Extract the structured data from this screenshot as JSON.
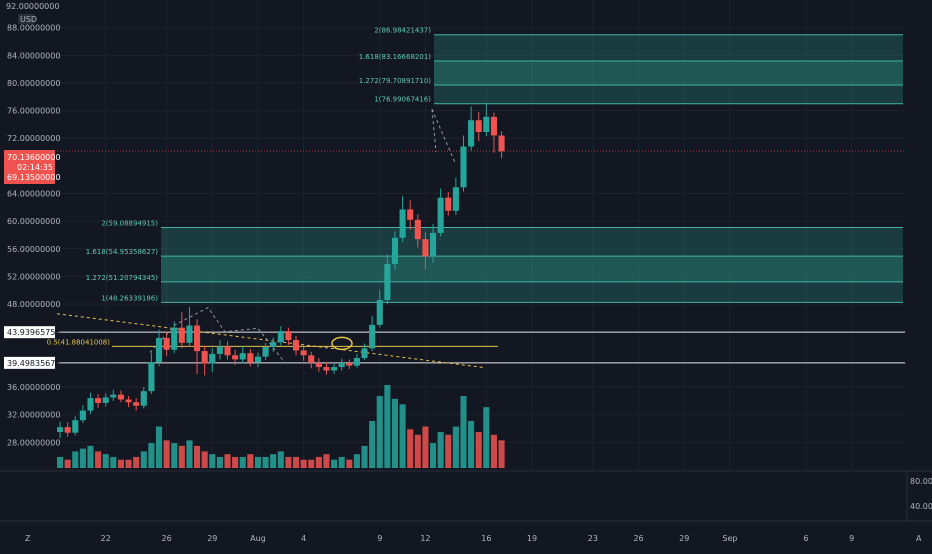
{
  "colors": {
    "background": "#131722",
    "grid": "#1e222d",
    "bull": "#26a69a",
    "bear": "#ef5350",
    "zone_fill": "#2a8c80",
    "zone_line": "#43b5a3",
    "level_line": "#e6e6e6",
    "trend_line": "#e3c24a",
    "current_price_bg": "#ef5350"
  },
  "header": {
    "top_price": "92.00000000",
    "currency": "USD"
  },
  "current_price": {
    "value": "70.13600000",
    "countdown": "02:14:35",
    "low": "69.13500000"
  },
  "levels": [
    {
      "label": "43.93965758",
      "value": 43.94
    },
    {
      "label": "39.49835673",
      "value": 39.5
    }
  ],
  "annotation": {
    "label": "0.5(41.88041008)",
    "value": 41.88
  },
  "fib_upper": [
    {
      "label": "2(86.98421437)",
      "value": 86.98
    },
    {
      "label": "1.618(83.16668201)",
      "value": 83.17
    },
    {
      "label": "1.272(79.70891710)",
      "value": 79.71
    },
    {
      "label": "1(76.99067416)",
      "value": 76.99
    }
  ],
  "fib_lower": [
    {
      "label": "2(59.08894915)",
      "value": 59.09
    },
    {
      "label": "1.618(54.95358627)",
      "value": 54.95
    },
    {
      "label": "1.272(51.20794345)",
      "value": 51.21
    },
    {
      "label": "1(48.26339186)",
      "value": 48.26
    }
  ],
  "volume_axis_labels": [
    "80.00",
    "40.00"
  ],
  "bottom_buttons": {
    "left": "Z",
    "right": "A"
  },
  "chart_data": {
    "type": "candlestick",
    "y_ticks": [
      "88.00000000",
      "84.00000000",
      "80.00000000",
      "76.00000000",
      "72.00000000",
      "64.00000000",
      "60.00000000",
      "56.00000000",
      "52.00000000",
      "48.00000000",
      "36.00000000",
      "32.00000000",
      "28.00000000"
    ],
    "y_tick_values": [
      88,
      84,
      80,
      76,
      72,
      64,
      60,
      56,
      52,
      48,
      36,
      32,
      28
    ],
    "ylim": [
      24,
      92
    ],
    "x_ticks": [
      "22",
      "26",
      "29",
      "Aug",
      "4",
      "9",
      "12",
      "16",
      "19",
      "23",
      "26",
      "29",
      "Sep",
      "6",
      "9"
    ],
    "x_tick_days": [
      22,
      26,
      29,
      32,
      35,
      40,
      43,
      47,
      50,
      54,
      57,
      60,
      63,
      68,
      71
    ],
    "xlim": [
      18.8,
      74.5
    ],
    "candles": [
      {
        "d": 19.0,
        "o": 29.5,
        "c": 30.2,
        "h": 31.0,
        "l": 28.6
      },
      {
        "d": 19.5,
        "o": 30.2,
        "c": 29.4,
        "h": 30.9,
        "l": 28.8
      },
      {
        "d": 20.0,
        "o": 29.4,
        "c": 31.2,
        "h": 31.8,
        "l": 29.0
      },
      {
        "d": 20.5,
        "o": 31.2,
        "c": 32.6,
        "h": 33.4,
        "l": 30.8
      },
      {
        "d": 21.0,
        "o": 32.6,
        "c": 34.4,
        "h": 35.2,
        "l": 32.1
      },
      {
        "d": 21.5,
        "o": 34.4,
        "c": 33.7,
        "h": 35.0,
        "l": 33.0
      },
      {
        "d": 22.0,
        "o": 33.7,
        "c": 34.5,
        "h": 35.1,
        "l": 33.2
      },
      {
        "d": 22.5,
        "o": 34.5,
        "c": 34.9,
        "h": 35.6,
        "l": 34.0
      },
      {
        "d": 23.0,
        "o": 34.9,
        "c": 34.2,
        "h": 35.5,
        "l": 33.8
      },
      {
        "d": 23.5,
        "o": 34.2,
        "c": 33.8,
        "h": 34.7,
        "l": 33.1
      },
      {
        "d": 24.0,
        "o": 33.8,
        "c": 33.3,
        "h": 34.4,
        "l": 32.6
      },
      {
        "d": 24.5,
        "o": 33.3,
        "c": 35.4,
        "h": 36.0,
        "l": 32.9
      },
      {
        "d": 25.0,
        "o": 35.4,
        "c": 39.6,
        "h": 41.0,
        "l": 35.0
      },
      {
        "d": 25.5,
        "o": 39.6,
        "c": 43.1,
        "h": 44.3,
        "l": 39.0
      },
      {
        "d": 26.0,
        "o": 43.1,
        "c": 41.4,
        "h": 44.0,
        "l": 40.5
      },
      {
        "d": 26.5,
        "o": 41.4,
        "c": 44.6,
        "h": 45.5,
        "l": 40.9
      },
      {
        "d": 27.0,
        "o": 44.6,
        "c": 42.4,
        "h": 46.8,
        "l": 41.6
      },
      {
        "d": 27.5,
        "o": 42.4,
        "c": 44.9,
        "h": 47.6,
        "l": 41.8
      },
      {
        "d": 28.0,
        "o": 44.9,
        "c": 41.2,
        "h": 45.8,
        "l": 37.9
      },
      {
        "d": 28.5,
        "o": 41.2,
        "c": 39.4,
        "h": 42.0,
        "l": 37.7
      },
      {
        "d": 29.0,
        "o": 39.4,
        "c": 40.8,
        "h": 41.6,
        "l": 38.2
      },
      {
        "d": 29.5,
        "o": 40.8,
        "c": 41.9,
        "h": 42.8,
        "l": 40.0
      },
      {
        "d": 30.0,
        "o": 41.9,
        "c": 40.6,
        "h": 42.6,
        "l": 40.0
      },
      {
        "d": 30.5,
        "o": 40.6,
        "c": 40.0,
        "h": 41.4,
        "l": 39.2
      },
      {
        "d": 31.0,
        "o": 40.0,
        "c": 40.9,
        "h": 41.9,
        "l": 39.4
      },
      {
        "d": 31.5,
        "o": 40.9,
        "c": 39.6,
        "h": 41.5,
        "l": 39.0
      },
      {
        "d": 32.0,
        "o": 39.6,
        "c": 40.4,
        "h": 41.0,
        "l": 38.9
      },
      {
        "d": 32.5,
        "o": 40.4,
        "c": 41.8,
        "h": 42.4,
        "l": 39.9
      },
      {
        "d": 33.0,
        "o": 41.8,
        "c": 42.5,
        "h": 43.2,
        "l": 41.1
      },
      {
        "d": 33.5,
        "o": 42.5,
        "c": 44.1,
        "h": 44.8,
        "l": 42.0
      },
      {
        "d": 34.0,
        "o": 44.1,
        "c": 42.8,
        "h": 44.6,
        "l": 42.1
      },
      {
        "d": 34.5,
        "o": 42.8,
        "c": 41.3,
        "h": 43.4,
        "l": 40.6
      },
      {
        "d": 35.0,
        "o": 41.3,
        "c": 40.6,
        "h": 41.9,
        "l": 39.8
      },
      {
        "d": 35.5,
        "o": 40.6,
        "c": 39.5,
        "h": 41.1,
        "l": 38.7
      },
      {
        "d": 36.0,
        "o": 39.5,
        "c": 38.9,
        "h": 40.2,
        "l": 38.2
      },
      {
        "d": 36.5,
        "o": 38.9,
        "c": 38.4,
        "h": 39.6,
        "l": 37.8
      },
      {
        "d": 37.0,
        "o": 38.4,
        "c": 38.9,
        "h": 39.5,
        "l": 37.9
      },
      {
        "d": 37.5,
        "o": 38.9,
        "c": 39.5,
        "h": 40.1,
        "l": 38.4
      },
      {
        "d": 38.0,
        "o": 39.5,
        "c": 39.1,
        "h": 40.0,
        "l": 38.6
      },
      {
        "d": 38.5,
        "o": 39.1,
        "c": 40.2,
        "h": 40.8,
        "l": 38.8
      },
      {
        "d": 39.0,
        "o": 40.2,
        "c": 41.6,
        "h": 42.3,
        "l": 39.9
      },
      {
        "d": 39.5,
        "o": 41.6,
        "c": 45.0,
        "h": 46.3,
        "l": 41.2
      },
      {
        "d": 40.0,
        "o": 45.0,
        "c": 48.6,
        "h": 50.0,
        "l": 44.6
      },
      {
        "d": 40.5,
        "o": 48.6,
        "c": 53.8,
        "h": 55.2,
        "l": 48.0
      },
      {
        "d": 41.0,
        "o": 53.8,
        "c": 57.6,
        "h": 58.5,
        "l": 53.0
      },
      {
        "d": 41.5,
        "o": 57.6,
        "c": 61.7,
        "h": 63.6,
        "l": 57.0
      },
      {
        "d": 42.0,
        "o": 61.7,
        "c": 60.2,
        "h": 63.0,
        "l": 58.8
      },
      {
        "d": 42.5,
        "o": 60.2,
        "c": 57.4,
        "h": 61.0,
        "l": 56.2
      },
      {
        "d": 43.0,
        "o": 57.4,
        "c": 54.9,
        "h": 58.4,
        "l": 53.1
      },
      {
        "d": 43.5,
        "o": 54.9,
        "c": 58.3,
        "h": 59.6,
        "l": 54.0
      },
      {
        "d": 44.0,
        "o": 58.3,
        "c": 63.4,
        "h": 64.7,
        "l": 57.8
      },
      {
        "d": 44.5,
        "o": 63.4,
        "c": 61.5,
        "h": 64.2,
        "l": 60.8
      },
      {
        "d": 45.0,
        "o": 61.5,
        "c": 64.9,
        "h": 66.3,
        "l": 60.9
      },
      {
        "d": 45.5,
        "o": 64.9,
        "c": 70.8,
        "h": 72.4,
        "l": 64.3
      },
      {
        "d": 46.0,
        "o": 70.8,
        "c": 74.6,
        "h": 76.6,
        "l": 70.2
      },
      {
        "d": 46.5,
        "o": 74.6,
        "c": 72.9,
        "h": 75.8,
        "l": 71.6
      },
      {
        "d": 47.0,
        "o": 72.9,
        "c": 75.1,
        "h": 77.1,
        "l": 72.3
      },
      {
        "d": 47.5,
        "o": 75.1,
        "c": 72.4,
        "h": 75.7,
        "l": 69.9
      },
      {
        "d": 48.0,
        "o": 72.4,
        "c": 70.1,
        "h": 73.0,
        "l": 69.1
      }
    ],
    "volumes": [
      {
        "d": 19.0,
        "v": 4,
        "up": true
      },
      {
        "d": 19.5,
        "v": 3,
        "up": false
      },
      {
        "d": 20.0,
        "v": 6,
        "up": true
      },
      {
        "d": 20.5,
        "v": 7,
        "up": true
      },
      {
        "d": 21.0,
        "v": 8,
        "up": true
      },
      {
        "d": 21.5,
        "v": 6,
        "up": false
      },
      {
        "d": 22.0,
        "v": 5,
        "up": true
      },
      {
        "d": 22.5,
        "v": 4,
        "up": true
      },
      {
        "d": 23.0,
        "v": 3,
        "up": false
      },
      {
        "d": 23.5,
        "v": 3,
        "up": false
      },
      {
        "d": 24.0,
        "v": 4,
        "up": false
      },
      {
        "d": 24.5,
        "v": 6,
        "up": true
      },
      {
        "d": 25.0,
        "v": 9,
        "up": true
      },
      {
        "d": 25.5,
        "v": 15,
        "up": true
      },
      {
        "d": 26.0,
        "v": 10,
        "up": false
      },
      {
        "d": 26.5,
        "v": 9,
        "up": true
      },
      {
        "d": 27.0,
        "v": 8,
        "up": false
      },
      {
        "d": 27.5,
        "v": 10,
        "up": true
      },
      {
        "d": 28.0,
        "v": 8,
        "up": false
      },
      {
        "d": 28.5,
        "v": 6,
        "up": false
      },
      {
        "d": 29.0,
        "v": 5,
        "up": true
      },
      {
        "d": 29.5,
        "v": 4,
        "up": true
      },
      {
        "d": 30.0,
        "v": 5,
        "up": false
      },
      {
        "d": 30.5,
        "v": 4,
        "up": false
      },
      {
        "d": 31.0,
        "v": 4,
        "up": true
      },
      {
        "d": 31.5,
        "v": 5,
        "up": false
      },
      {
        "d": 32.0,
        "v": 4,
        "up": true
      },
      {
        "d": 32.5,
        "v": 4,
        "up": true
      },
      {
        "d": 33.0,
        "v": 5,
        "up": true
      },
      {
        "d": 33.5,
        "v": 6,
        "up": true
      },
      {
        "d": 34.0,
        "v": 4,
        "up": false
      },
      {
        "d": 34.5,
        "v": 4,
        "up": false
      },
      {
        "d": 35.0,
        "v": 3,
        "up": false
      },
      {
        "d": 35.5,
        "v": 3,
        "up": false
      },
      {
        "d": 36.0,
        "v": 4,
        "up": false
      },
      {
        "d": 36.5,
        "v": 5,
        "up": false
      },
      {
        "d": 37.0,
        "v": 3,
        "up": true
      },
      {
        "d": 37.5,
        "v": 4,
        "up": true
      },
      {
        "d": 38.0,
        "v": 3,
        "up": false
      },
      {
        "d": 38.5,
        "v": 5,
        "up": true
      },
      {
        "d": 39.0,
        "v": 8,
        "up": true
      },
      {
        "d": 39.5,
        "v": 17,
        "up": true
      },
      {
        "d": 40.0,
        "v": 26,
        "up": true
      },
      {
        "d": 40.5,
        "v": 30,
        "up": true
      },
      {
        "d": 41.0,
        "v": 25,
        "up": true
      },
      {
        "d": 41.5,
        "v": 23,
        "up": true
      },
      {
        "d": 42.0,
        "v": 14,
        "up": false
      },
      {
        "d": 42.5,
        "v": 12,
        "up": false
      },
      {
        "d": 43.0,
        "v": 15,
        "up": false
      },
      {
        "d": 43.5,
        "v": 9,
        "up": true
      },
      {
        "d": 44.0,
        "v": 13,
        "up": true
      },
      {
        "d": 44.5,
        "v": 12,
        "up": false
      },
      {
        "d": 45.0,
        "v": 15,
        "up": true
      },
      {
        "d": 45.5,
        "v": 26,
        "up": true
      },
      {
        "d": 46.0,
        "v": 17,
        "up": true
      },
      {
        "d": 46.5,
        "v": 13,
        "up": false
      },
      {
        "d": 47.0,
        "v": 22,
        "up": true
      },
      {
        "d": 47.5,
        "v": 12,
        "up": false
      },
      {
        "d": 48.0,
        "v": 10,
        "up": false
      }
    ]
  }
}
